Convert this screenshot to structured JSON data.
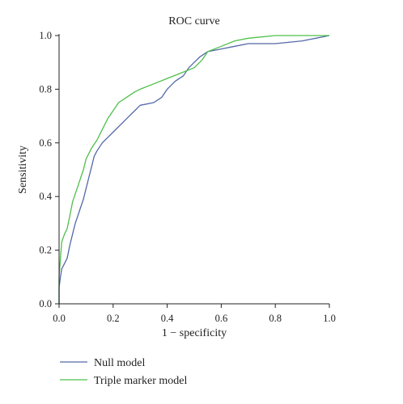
{
  "chart_data": {
    "type": "line",
    "title": "ROC curve",
    "xlabel": "1 − specificity",
    "ylabel": "Sensitivity",
    "xlim": [
      0,
      1
    ],
    "ylim": [
      0,
      1
    ],
    "x_ticks": [
      0.0,
      0.2,
      0.4,
      0.6,
      0.8,
      1.0
    ],
    "y_ticks": [
      0.0,
      0.2,
      0.4,
      0.6,
      0.8,
      1.0
    ],
    "x_tick_labels": [
      "0.0",
      "0.2",
      "0.4",
      "0.6",
      "0.8",
      "1.0"
    ],
    "y_tick_labels": [
      "0.0",
      "0.2",
      "0.4",
      "0.6",
      "0.8",
      "1.0"
    ],
    "grid": false,
    "legend_position": "bottom-left, below plot",
    "series": [
      {
        "name": "Null model",
        "color": "#5468a8",
        "points": [
          [
            0.0,
            0.0
          ],
          [
            0.0,
            0.06
          ],
          [
            0.005,
            0.1
          ],
          [
            0.01,
            0.13
          ],
          [
            0.02,
            0.15
          ],
          [
            0.03,
            0.17
          ],
          [
            0.04,
            0.22
          ],
          [
            0.05,
            0.26
          ],
          [
            0.06,
            0.3
          ],
          [
            0.07,
            0.33
          ],
          [
            0.08,
            0.36
          ],
          [
            0.09,
            0.39
          ],
          [
            0.1,
            0.43
          ],
          [
            0.11,
            0.47
          ],
          [
            0.12,
            0.51
          ],
          [
            0.13,
            0.55
          ],
          [
            0.14,
            0.57
          ],
          [
            0.16,
            0.6
          ],
          [
            0.18,
            0.62
          ],
          [
            0.2,
            0.64
          ],
          [
            0.23,
            0.67
          ],
          [
            0.26,
            0.7
          ],
          [
            0.28,
            0.72
          ],
          [
            0.3,
            0.74
          ],
          [
            0.35,
            0.75
          ],
          [
            0.38,
            0.77
          ],
          [
            0.4,
            0.8
          ],
          [
            0.43,
            0.83
          ],
          [
            0.46,
            0.85
          ],
          [
            0.48,
            0.88
          ],
          [
            0.5,
            0.9
          ],
          [
            0.52,
            0.92
          ],
          [
            0.55,
            0.94
          ],
          [
            0.6,
            0.95
          ],
          [
            0.65,
            0.96
          ],
          [
            0.7,
            0.97
          ],
          [
            0.8,
            0.97
          ],
          [
            0.9,
            0.98
          ],
          [
            0.95,
            0.99
          ],
          [
            1.0,
            1.0
          ]
        ]
      },
      {
        "name": "Triple marker model",
        "color": "#4ec04a",
        "points": [
          [
            0.0,
            0.0
          ],
          [
            0.0,
            0.1
          ],
          [
            0.005,
            0.17
          ],
          [
            0.01,
            0.23
          ],
          [
            0.02,
            0.26
          ],
          [
            0.03,
            0.28
          ],
          [
            0.04,
            0.33
          ],
          [
            0.05,
            0.38
          ],
          [
            0.06,
            0.41
          ],
          [
            0.07,
            0.44
          ],
          [
            0.08,
            0.47
          ],
          [
            0.09,
            0.5
          ],
          [
            0.1,
            0.54
          ],
          [
            0.12,
            0.58
          ],
          [
            0.14,
            0.61
          ],
          [
            0.16,
            0.65
          ],
          [
            0.18,
            0.69
          ],
          [
            0.2,
            0.72
          ],
          [
            0.22,
            0.75
          ],
          [
            0.25,
            0.77
          ],
          [
            0.28,
            0.79
          ],
          [
            0.3,
            0.8
          ],
          [
            0.35,
            0.82
          ],
          [
            0.4,
            0.84
          ],
          [
            0.45,
            0.86
          ],
          [
            0.5,
            0.88
          ],
          [
            0.53,
            0.91
          ],
          [
            0.55,
            0.94
          ],
          [
            0.6,
            0.96
          ],
          [
            0.65,
            0.98
          ],
          [
            0.7,
            0.99
          ],
          [
            0.8,
            1.0
          ],
          [
            0.9,
            1.0
          ],
          [
            1.0,
            1.0
          ]
        ]
      }
    ]
  }
}
